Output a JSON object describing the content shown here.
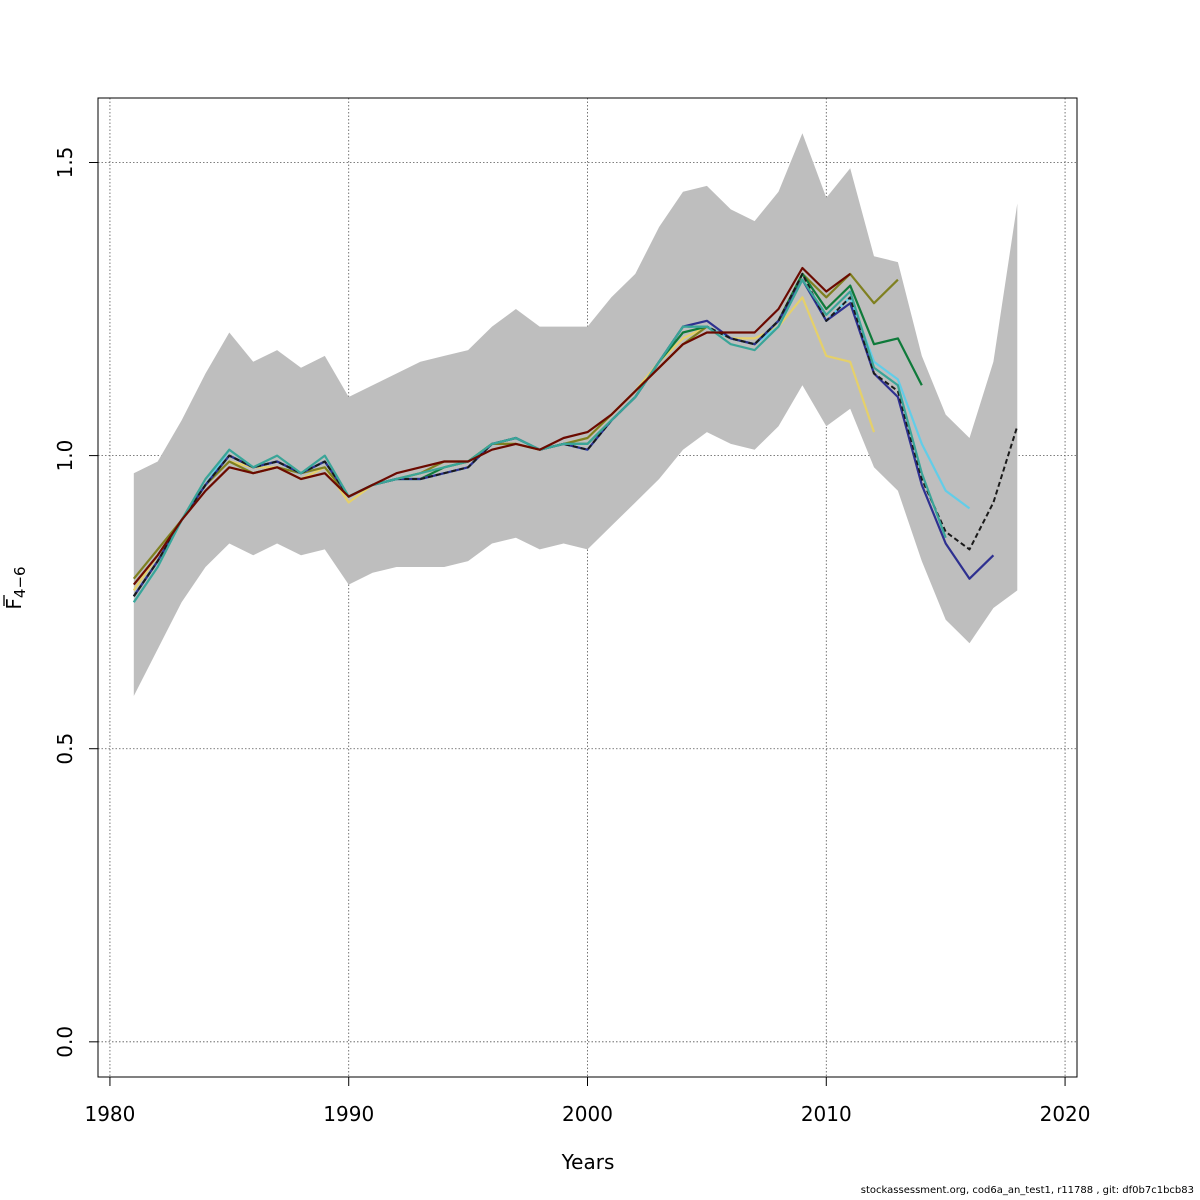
{
  "chart_data": {
    "type": "line",
    "title": "",
    "xlabel": "Years",
    "ylabel_main": "F",
    "ylabel_sub": "4−6",
    "xlim": [
      1979.5,
      2020.5
    ],
    "ylim": [
      -0.06,
      1.61
    ],
    "x_ticks": [
      1980,
      1990,
      2000,
      2010,
      2020
    ],
    "x_tick_labels": [
      "1980",
      "1990",
      "2000",
      "2010",
      "2020"
    ],
    "y_ticks": [
      0.0,
      0.5,
      1.0,
      1.5
    ],
    "y_tick_labels": [
      "0.0",
      "0.5",
      "1.0",
      "1.5"
    ],
    "grid": true,
    "band": {
      "x": [
        1981,
        1982,
        1983,
        1984,
        1985,
        1986,
        1987,
        1988,
        1989,
        1990,
        1991,
        1992,
        1993,
        1994,
        1995,
        1996,
        1997,
        1998,
        1999,
        2000,
        2001,
        2002,
        2003,
        2004,
        2005,
        2006,
        2007,
        2008,
        2009,
        2010,
        2011,
        2012,
        2013,
        2014,
        2015,
        2016,
        2017,
        2018
      ],
      "upper": [
        0.97,
        0.99,
        1.06,
        1.14,
        1.21,
        1.16,
        1.18,
        1.15,
        1.17,
        1.1,
        1.12,
        1.14,
        1.16,
        1.17,
        1.18,
        1.22,
        1.25,
        1.22,
        1.22,
        1.22,
        1.27,
        1.31,
        1.39,
        1.45,
        1.46,
        1.42,
        1.4,
        1.45,
        1.55,
        1.44,
        1.49,
        1.34,
        1.33,
        1.17,
        1.07,
        1.03,
        1.16,
        1.43
      ],
      "lower": [
        0.59,
        0.67,
        0.75,
        0.81,
        0.85,
        0.83,
        0.85,
        0.83,
        0.84,
        0.78,
        0.8,
        0.81,
        0.81,
        0.81,
        0.82,
        0.85,
        0.86,
        0.84,
        0.85,
        0.84,
        0.88,
        0.92,
        0.96,
        1.01,
        1.04,
        1.02,
        1.01,
        1.05,
        1.12,
        1.05,
        1.08,
        0.98,
        0.94,
        0.82,
        0.72,
        0.68,
        0.74,
        0.77
      ]
    },
    "series": [
      {
        "color": "#e5d06a",
        "values": [
          0.77,
          0.83,
          0.89,
          0.95,
          0.99,
          0.98,
          0.98,
          0.96,
          0.98,
          0.92,
          0.95,
          0.96,
          0.97,
          0.98,
          0.99,
          1.02,
          1.02,
          1.01,
          1.02,
          1.03,
          1.07,
          1.11,
          1.16,
          1.2,
          1.22,
          1.2,
          1.2,
          1.22,
          1.27,
          1.17,
          1.16,
          1.04
        ]
      },
      {
        "color": "#7f8020",
        "values": [
          0.79,
          0.84,
          0.89,
          0.95,
          0.99,
          0.97,
          0.98,
          0.97,
          0.98,
          0.93,
          0.95,
          0.96,
          0.97,
          0.99,
          0.99,
          1.02,
          1.02,
          1.01,
          1.02,
          1.03,
          1.07,
          1.11,
          1.15,
          1.19,
          1.22,
          1.2,
          1.19,
          1.23,
          1.31,
          1.27,
          1.31,
          1.26,
          1.3
        ]
      },
      {
        "color": "#0f7a3a",
        "values": [
          0.76,
          0.82,
          0.89,
          0.95,
          1.0,
          0.98,
          0.99,
          0.97,
          0.99,
          0.93,
          0.95,
          0.96,
          0.96,
          0.98,
          0.99,
          1.02,
          1.03,
          1.01,
          1.02,
          1.02,
          1.06,
          1.1,
          1.16,
          1.21,
          1.22,
          1.2,
          1.19,
          1.23,
          1.31,
          1.25,
          1.29,
          1.19,
          1.2,
          1.12
        ]
      },
      {
        "color": "#62cde8",
        "values": [
          0.75,
          0.81,
          0.89,
          0.95,
          1.01,
          0.98,
          0.99,
          0.97,
          0.99,
          0.93,
          0.95,
          0.96,
          0.96,
          0.97,
          0.98,
          1.02,
          1.03,
          1.01,
          1.02,
          1.01,
          1.06,
          1.1,
          1.16,
          1.22,
          1.22,
          1.2,
          1.19,
          1.22,
          1.3,
          1.23,
          1.27,
          1.16,
          1.13,
          1.02,
          0.94,
          0.91
        ]
      },
      {
        "color": "#2e3090",
        "values": [
          0.76,
          0.82,
          0.89,
          0.95,
          1.0,
          0.98,
          0.99,
          0.97,
          0.99,
          0.93,
          0.95,
          0.96,
          0.96,
          0.97,
          0.98,
          1.02,
          1.03,
          1.01,
          1.02,
          1.01,
          1.06,
          1.1,
          1.16,
          1.22,
          1.23,
          1.2,
          1.19,
          1.23,
          1.3,
          1.23,
          1.26,
          1.14,
          1.1,
          0.95,
          0.85,
          0.79,
          0.83
        ]
      },
      {
        "color": "#1a1a1a",
        "dashed": true,
        "values": [
          0.76,
          0.82,
          0.89,
          0.95,
          1.0,
          0.98,
          0.99,
          0.97,
          0.99,
          0.93,
          0.95,
          0.96,
          0.96,
          0.97,
          0.98,
          1.02,
          1.03,
          1.01,
          1.02,
          1.01,
          1.06,
          1.1,
          1.16,
          1.22,
          1.22,
          1.2,
          1.19,
          1.23,
          1.31,
          1.23,
          1.27,
          1.14,
          1.11,
          0.96,
          0.87,
          0.84,
          0.92,
          1.05
        ]
      },
      {
        "color": "#3aa598",
        "values": [
          0.75,
          0.81,
          0.89,
          0.96,
          1.01,
          0.98,
          1.0,
          0.97,
          1.0,
          0.93,
          0.95,
          0.96,
          0.97,
          0.98,
          0.99,
          1.02,
          1.03,
          1.01,
          1.02,
          1.02,
          1.06,
          1.1,
          1.16,
          1.22,
          1.22,
          1.19,
          1.18,
          1.22,
          1.3,
          1.24,
          1.28,
          1.15,
          1.12,
          0.97,
          0.86
        ]
      },
      {
        "color": "#6b0a00",
        "values": [
          0.78,
          0.83,
          0.89,
          0.94,
          0.98,
          0.97,
          0.98,
          0.96,
          0.97,
          0.93,
          0.95,
          0.97,
          0.98,
          0.99,
          0.99,
          1.01,
          1.02,
          1.01,
          1.03,
          1.04,
          1.07,
          1.11,
          1.15,
          1.19,
          1.21,
          1.21,
          1.21,
          1.25,
          1.32,
          1.28,
          1.31
        ]
      }
    ]
  },
  "footer": "stockassessment.org, cod6a_an_test1, r11788 , git: df0b7c1bcb83"
}
